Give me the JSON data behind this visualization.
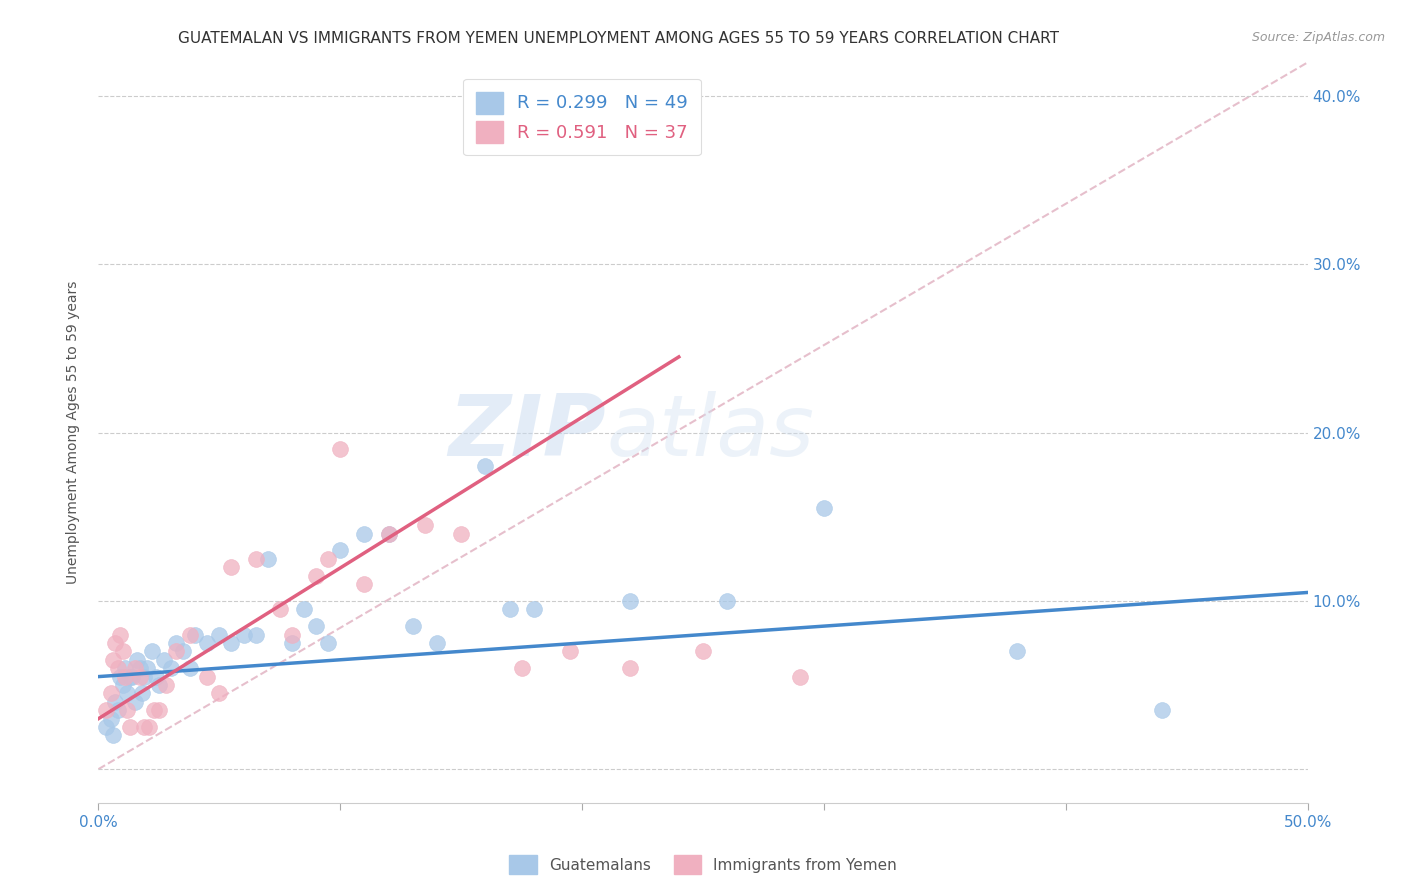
{
  "title": "GUATEMALAN VS IMMIGRANTS FROM YEMEN UNEMPLOYMENT AMONG AGES 55 TO 59 YEARS CORRELATION CHART",
  "source": "Source: ZipAtlas.com",
  "ylabel": "Unemployment Among Ages 55 to 59 years",
  "xlim": [
    0.0,
    0.5
  ],
  "ylim": [
    -0.02,
    0.42
  ],
  "xticks": [
    0.0,
    0.1,
    0.2,
    0.3,
    0.4,
    0.5
  ],
  "xticklabels": [
    "0.0%",
    "",
    "",
    "",
    "",
    "50.0%"
  ],
  "yticks": [
    0.0,
    0.1,
    0.2,
    0.3,
    0.4
  ],
  "yticklabels": [
    "",
    "10.0%",
    "20.0%",
    "30.0%",
    "40.0%"
  ],
  "blue_color": "#a8c8e8",
  "pink_color": "#f0b0c0",
  "blue_line_color": "#4488cc",
  "pink_line_color": "#e06080",
  "dashed_line_color": "#e0b0c0",
  "legend_R_blue": "0.299",
  "legend_N_blue": "49",
  "legend_R_pink": "0.591",
  "legend_N_pink": "37",
  "watermark_zip": "ZIP",
  "watermark_atlas": "atlas",
  "blue_scatter_x": [
    0.003,
    0.005,
    0.006,
    0.007,
    0.008,
    0.009,
    0.01,
    0.011,
    0.012,
    0.013,
    0.014,
    0.015,
    0.016,
    0.017,
    0.018,
    0.019,
    0.02,
    0.022,
    0.024,
    0.025,
    0.027,
    0.03,
    0.032,
    0.035,
    0.038,
    0.04,
    0.045,
    0.05,
    0.055,
    0.06,
    0.065,
    0.07,
    0.08,
    0.085,
    0.09,
    0.095,
    0.1,
    0.11,
    0.12,
    0.13,
    0.14,
    0.16,
    0.17,
    0.18,
    0.22,
    0.26,
    0.3,
    0.38,
    0.44
  ],
  "blue_scatter_y": [
    0.025,
    0.03,
    0.02,
    0.04,
    0.035,
    0.055,
    0.05,
    0.06,
    0.045,
    0.055,
    0.055,
    0.04,
    0.065,
    0.06,
    0.045,
    0.055,
    0.06,
    0.07,
    0.055,
    0.05,
    0.065,
    0.06,
    0.075,
    0.07,
    0.06,
    0.08,
    0.075,
    0.08,
    0.075,
    0.08,
    0.08,
    0.125,
    0.075,
    0.095,
    0.085,
    0.075,
    0.13,
    0.14,
    0.14,
    0.085,
    0.075,
    0.18,
    0.095,
    0.095,
    0.1,
    0.1,
    0.155,
    0.07,
    0.035
  ],
  "pink_scatter_x": [
    0.003,
    0.005,
    0.006,
    0.007,
    0.008,
    0.009,
    0.01,
    0.011,
    0.012,
    0.013,
    0.015,
    0.017,
    0.019,
    0.021,
    0.023,
    0.025,
    0.028,
    0.032,
    0.038,
    0.045,
    0.05,
    0.055,
    0.065,
    0.075,
    0.08,
    0.09,
    0.095,
    0.1,
    0.11,
    0.12,
    0.135,
    0.15,
    0.175,
    0.195,
    0.22,
    0.25,
    0.29
  ],
  "pink_scatter_y": [
    0.035,
    0.045,
    0.065,
    0.075,
    0.06,
    0.08,
    0.07,
    0.055,
    0.035,
    0.025,
    0.06,
    0.055,
    0.025,
    0.025,
    0.035,
    0.035,
    0.05,
    0.07,
    0.08,
    0.055,
    0.045,
    0.12,
    0.125,
    0.095,
    0.08,
    0.115,
    0.125,
    0.19,
    0.11,
    0.14,
    0.145,
    0.14,
    0.06,
    0.07,
    0.06,
    0.07,
    0.055
  ],
  "blue_line_x": [
    0.0,
    0.5
  ],
  "blue_line_y": [
    0.055,
    0.105
  ],
  "pink_line_x": [
    0.0,
    0.24
  ],
  "pink_line_y": [
    0.03,
    0.245
  ],
  "dashed_line_x": [
    0.0,
    0.5
  ],
  "dashed_line_y": [
    0.0,
    0.42
  ],
  "title_fontsize": 11,
  "axis_label_fontsize": 10,
  "tick_fontsize": 11,
  "legend_fontsize": 13
}
